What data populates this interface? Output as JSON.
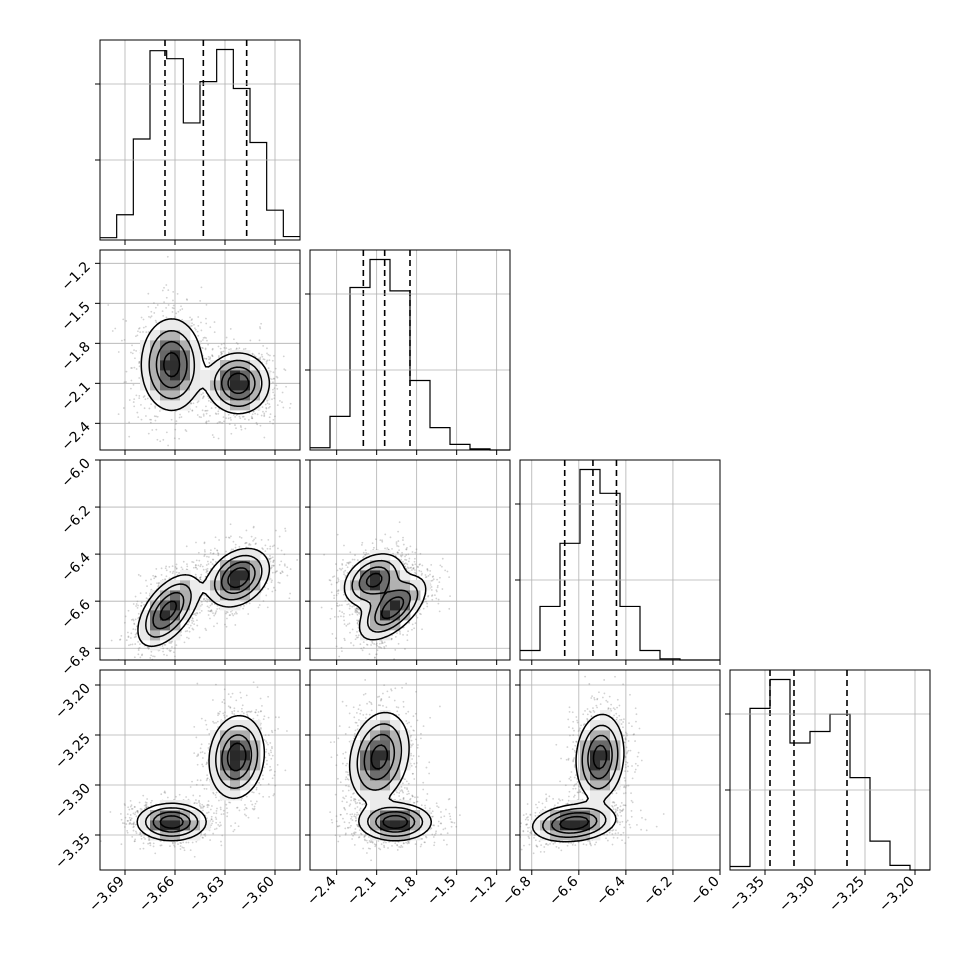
{
  "figure": {
    "kind": "corner-plot"
  },
  "chart_data": {
    "type": "corner",
    "parameters": [
      "",
      "",
      "",
      ""
    ],
    "ranges": [
      [
        -3.705,
        -3.585
      ],
      [
        -2.6,
        -1.1
      ],
      [
        -6.85,
        -6.0
      ],
      [
        -3.385,
        -3.185
      ]
    ],
    "ticks": [
      [
        -3.69,
        -3.66,
        -3.63,
        -3.6
      ],
      [
        -2.4,
        -2.1,
        -1.8,
        -1.5,
        -1.2
      ],
      [
        -6.8,
        -6.6,
        -6.4,
        -6.2,
        -6.0
      ],
      [
        -3.35,
        -3.3,
        -3.25,
        -3.2
      ]
    ],
    "tick_labels": [
      [
        "−3.69",
        "−3.66",
        "−3.63",
        "−3.60"
      ],
      [
        "−2.4",
        "−2.1",
        "−1.8",
        "−1.5",
        "−1.2"
      ],
      [
        "−6.8",
        "−6.6",
        "−6.4",
        "−6.2",
        "−6.0"
      ],
      [
        "−3.35",
        "−3.30",
        "−3.25",
        "−3.20"
      ]
    ],
    "grid": true,
    "histograms": [
      {
        "parameter": 0,
        "bin_edges": [
          -3.705,
          -3.695,
          -3.685,
          -3.675,
          -3.665,
          -3.655,
          -3.645,
          -3.635,
          -3.625,
          -3.615,
          -3.605,
          -3.595,
          -3.585
        ],
        "counts": [
          2,
          22,
          88,
          165,
          158,
          102,
          138,
          166,
          132,
          85,
          26,
          3
        ],
        "quantiles": [
          -3.666,
          -3.643,
          -3.617
        ]
      },
      {
        "parameter": 1,
        "bin_edges": [
          -2.6,
          -2.45,
          -2.3,
          -2.15,
          -2.0,
          -1.85,
          -1.7,
          -1.55,
          -1.4,
          -1.25,
          -1.1
        ],
        "counts": [
          2,
          30,
          145,
          170,
          142,
          62,
          20,
          5,
          1,
          0
        ],
        "quantiles": [
          -2.2,
          -2.04,
          -1.85
        ]
      },
      {
        "parameter": 2,
        "bin_edges": [
          -6.85,
          -6.765,
          -6.68,
          -6.595,
          -6.51,
          -6.425,
          -6.34,
          -6.255,
          -6.17,
          -6.085,
          -6.0
        ],
        "counts": [
          8,
          45,
          98,
          160,
          140,
          45,
          8,
          1,
          0,
          0
        ],
        "quantiles": [
          -6.66,
          -6.54,
          -6.44
        ]
      },
      {
        "parameter": 3,
        "bin_edges": [
          -3.385,
          -3.365,
          -3.345,
          -3.325,
          -3.305,
          -3.285,
          -3.265,
          -3.245,
          -3.225,
          -3.205,
          -3.185
        ],
        "counts": [
          3,
          140,
          165,
          110,
          120,
          135,
          80,
          25,
          4,
          0
        ],
        "quantiles": [
          -3.345,
          -3.321,
          -3.268
        ]
      }
    ],
    "joint_distributions": [
      {
        "x": 0,
        "y": 1,
        "modes": [
          {
            "center": [
              -3.662,
              -1.96
            ],
            "sigma": [
              0.009,
              0.17
            ],
            "rho": 0.0,
            "weight": 1.0
          },
          {
            "center": [
              -3.622,
              -2.1
            ],
            "sigma": [
              0.009,
              0.11
            ],
            "rho": 0.0,
            "weight": 1.1
          }
        ]
      },
      {
        "x": 0,
        "y": 2,
        "modes": [
          {
            "center": [
              -3.664,
              -6.64
            ],
            "sigma": [
              0.009,
              0.075
            ],
            "rho": 0.55,
            "weight": 1.0
          },
          {
            "center": [
              -3.622,
              -6.5
            ],
            "sigma": [
              0.009,
              0.06
            ],
            "rho": 0.3,
            "weight": 1.1
          }
        ]
      },
      {
        "x": 0,
        "y": 3,
        "modes": [
          {
            "center": [
              -3.662,
              -3.337
            ],
            "sigma": [
              0.01,
              0.009
            ],
            "rho": 0.0,
            "weight": 1.0
          },
          {
            "center": [
              -3.623,
              -3.272
            ],
            "sigma": [
              0.008,
              0.02
            ],
            "rho": 0.1,
            "weight": 1.0
          }
        ]
      },
      {
        "x": 1,
        "y": 2,
        "modes": [
          {
            "center": [
              -2.12,
              -6.51
            ],
            "sigma": [
              0.11,
              0.055
            ],
            "rho": 0.3,
            "weight": 1.0
          },
          {
            "center": [
              -1.98,
              -6.63
            ],
            "sigma": [
              0.12,
              0.065
            ],
            "rho": 0.6,
            "weight": 1.1
          }
        ]
      },
      {
        "x": 1,
        "y": 3,
        "modes": [
          {
            "center": [
              -2.08,
              -3.272
            ],
            "sigma": [
              0.11,
              0.022
            ],
            "rho": 0.2,
            "weight": 1.0
          },
          {
            "center": [
              -1.96,
              -3.337
            ],
            "sigma": [
              0.13,
              0.009
            ],
            "rho": 0.0,
            "weight": 1.1
          }
        ]
      },
      {
        "x": 2,
        "y": 3,
        "modes": [
          {
            "center": [
              -6.62,
              -3.338
            ],
            "sigma": [
              0.085,
              0.009
            ],
            "rho": 0.2,
            "weight": 1.1
          },
          {
            "center": [
              -6.51,
              -3.272
            ],
            "sigma": [
              0.05,
              0.021
            ],
            "rho": 0.1,
            "weight": 1.0
          }
        ]
      }
    ],
    "contour_levels": [
      0.12,
      0.3,
      0.55,
      0.8
    ],
    "colors": {
      "line": "#000000",
      "grid": "#b0b0b0",
      "points": "#7f7f7f",
      "fill_dark": "#000000"
    }
  }
}
